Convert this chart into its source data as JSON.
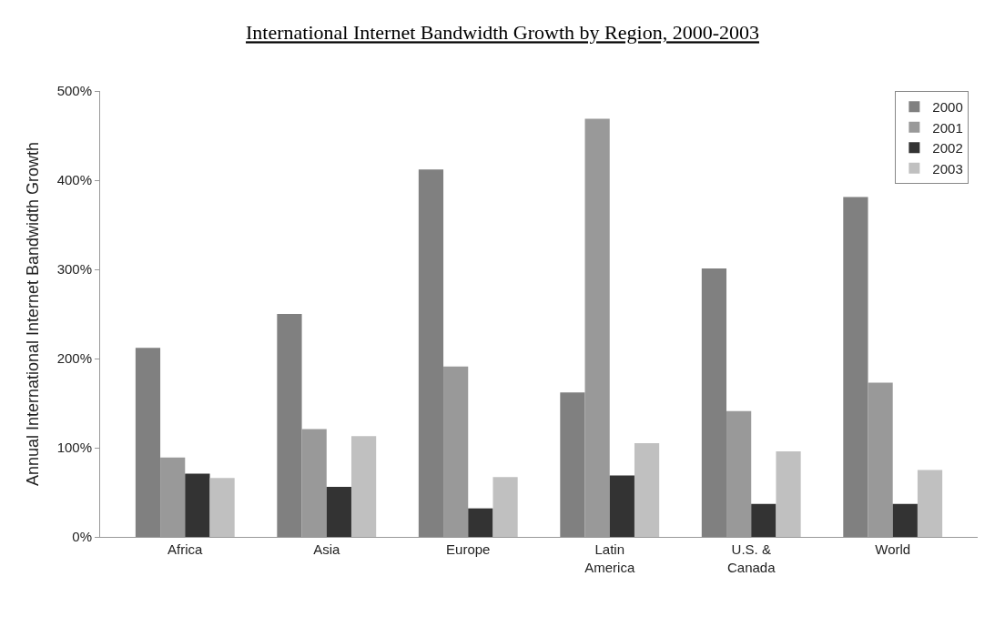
{
  "chart_data": {
    "type": "bar",
    "title": "International Internet Bandwidth Growth by Region, 2000-2003",
    "ylabel": "Annual International Internet Bandwidth Growth",
    "categories": [
      "Africa",
      "Asia",
      "Europe",
      "Latin America",
      "U.S. & Canada",
      "World"
    ],
    "series": [
      {
        "name": "2000",
        "color": "#808080",
        "values": [
          212,
          250,
          412,
          162,
          301,
          381
        ]
      },
      {
        "name": "2001",
        "color": "#999999",
        "values": [
          89,
          121,
          191,
          469,
          141,
          173
        ]
      },
      {
        "name": "2002",
        "color": "#333333",
        "values": [
          71,
          56,
          32,
          69,
          37,
          37
        ]
      },
      {
        "name": "2003",
        "color": "#c0c0c0",
        "values": [
          66,
          113,
          67,
          105,
          96,
          75
        ]
      }
    ],
    "ylim": [
      0,
      500
    ],
    "yticks": [
      {
        "value": 0,
        "label": "0%"
      },
      {
        "value": 100,
        "label": "100%"
      },
      {
        "value": 200,
        "label": "200%"
      },
      {
        "value": 300,
        "label": "300%"
      },
      {
        "value": 400,
        "label": "400%"
      },
      {
        "value": 500,
        "label": "500%"
      }
    ],
    "legend": "top right"
  }
}
